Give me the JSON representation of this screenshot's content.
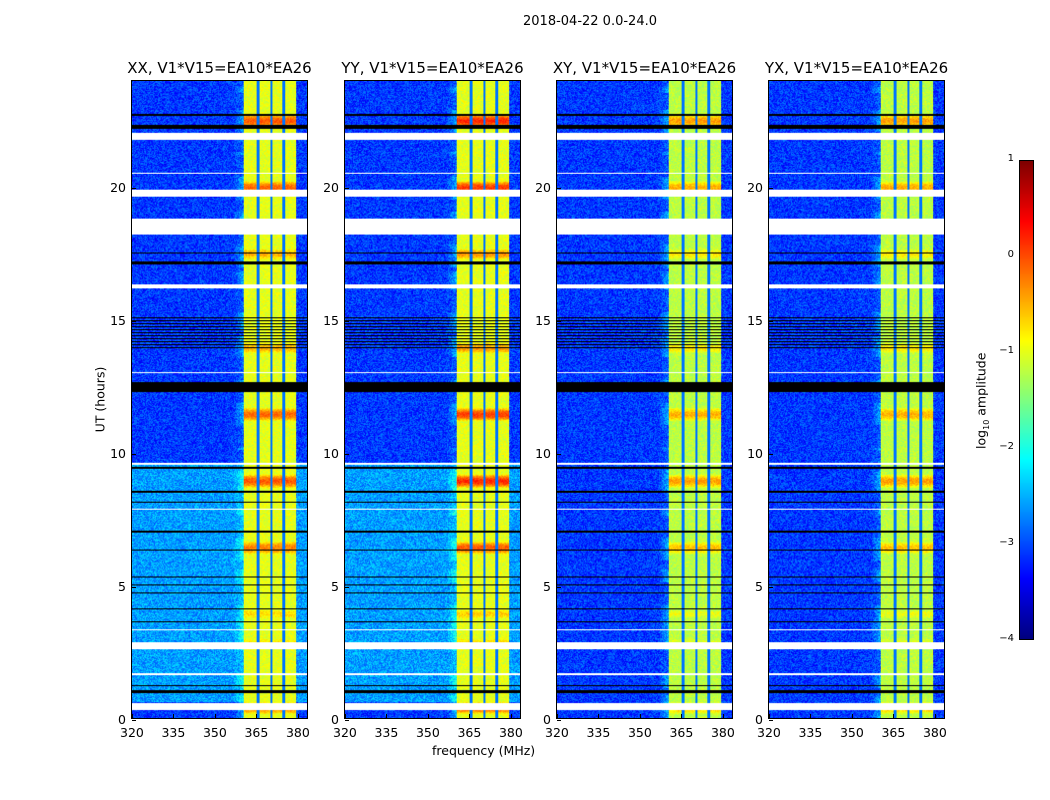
{
  "suptitle": "2018-04-22 0.0-24.0",
  "chart_data": {
    "type": "heatmap",
    "title": "2018-04-22 0.0-24.0",
    "panels": [
      {
        "title": "XX, V1*V15=EA10*EA26",
        "background_level": -2.6,
        "band_level": -1.0,
        "hot_level": 0.2
      },
      {
        "title": "YY, V1*V15=EA10*EA26",
        "background_level": -2.6,
        "band_level": -1.0,
        "hot_level": 0.5
      },
      {
        "title": "XY, V1*V15=EA10*EA26",
        "background_level": -3.1,
        "band_level": -1.2,
        "hot_level": -0.2
      },
      {
        "title": "YX, V1*V15=EA10*EA26",
        "background_level": -3.1,
        "band_level": -1.2,
        "hot_level": -0.2
      }
    ],
    "xlabel": "frequency (MHz)",
    "ylabel": "UT (hours)",
    "xlim": [
      320,
      384
    ],
    "ylim": [
      0,
      24
    ],
    "xticks": [
      320,
      335,
      350,
      365,
      380
    ],
    "yticks": [
      0,
      5,
      10,
      15,
      20
    ],
    "xtick_labels": [
      "320",
      "335",
      "350",
      "365",
      "380"
    ],
    "ytick_labels": [
      "0",
      "5",
      "10",
      "15",
      "20"
    ],
    "bright_band_MHz": [
      361,
      380
    ],
    "band_channel_edges_MHz": [
      366.2,
      371,
      375.6
    ],
    "flagged_white_UT": [
      [
        0.3,
        0.55
      ],
      [
        1.6,
        1.7
      ],
      [
        2.6,
        2.85
      ],
      [
        3.3,
        3.35
      ],
      [
        7.85,
        7.9
      ],
      [
        9.55,
        9.62
      ],
      [
        13.0,
        13.05
      ],
      [
        16.2,
        16.35
      ],
      [
        18.2,
        18.8
      ],
      [
        19.65,
        19.9
      ],
      [
        20.5,
        20.55
      ],
      [
        21.8,
        22.05
      ]
    ],
    "flagged_black_UT": [
      [
        0.95,
        1.05
      ],
      [
        1.2,
        1.25
      ],
      [
        3.6,
        3.65
      ],
      [
        4.1,
        4.15
      ],
      [
        4.7,
        4.75
      ],
      [
        5.0,
        5.05
      ],
      [
        5.3,
        5.35
      ],
      [
        6.3,
        6.35
      ],
      [
        7.0,
        7.05
      ],
      [
        8.1,
        8.15
      ],
      [
        8.5,
        8.55
      ],
      [
        9.4,
        9.45
      ],
      [
        12.3,
        12.65
      ],
      [
        13.9,
        15.1
      ],
      [
        17.1,
        17.2
      ],
      [
        17.5,
        17.55
      ],
      [
        22.2,
        22.35
      ],
      [
        22.7,
        22.75
      ]
    ],
    "colorbar": {
      "label": "log10 amplitude",
      "label_main": "log",
      "label_sub": "10",
      "label_rest": " amplitude",
      "range": [
        -4,
        1
      ],
      "ticks": [
        "1",
        "0",
        "−1",
        "−2",
        "−3",
        "−4"
      ],
      "colormap": "jet"
    }
  }
}
